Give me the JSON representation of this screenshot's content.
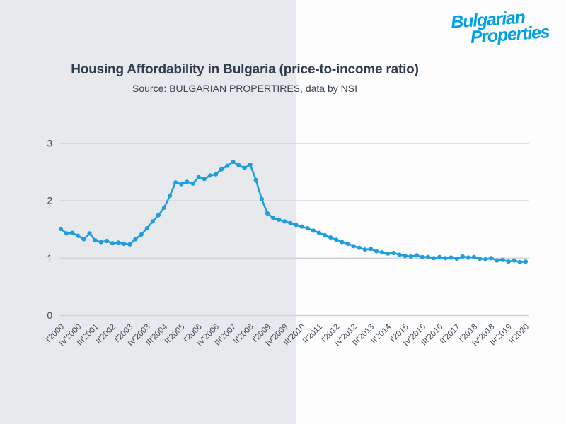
{
  "logo": {
    "line1": "Bulgarian",
    "line2": "Properties"
  },
  "header": {
    "title": "Housing Affordability in Bulgaria (price-to-income ratio)",
    "subtitle": "Source: BULGARIAN PROPERTIRES, data by NSI"
  },
  "colors": {
    "logo_blue": "#00A0E4",
    "line_blue": "#1E9EDF",
    "left_panel_bg": "#E7E9EC",
    "right_panel_bg": "#FDFDFE",
    "gridline": "#D0D4DA",
    "title_text": "#2F3D4D",
    "subtitle_text": "#3A4552",
    "axis_text": "#3E4A57"
  },
  "chart_data": {
    "type": "line",
    "title": "Housing Affordability in Bulgaria (price-to-income ratio)",
    "subtitle": "Source: BULGARIAN PROPERTIRES, data by NSI",
    "series_name": "price-to-income ratio",
    "ylim": [
      0,
      3
    ],
    "yticks": [
      0,
      1,
      2,
      3
    ],
    "grid": "horizontal",
    "legend": "none",
    "marker": "circle",
    "x_tick_every": 3,
    "x_tick_labels": [
      "I'2000",
      "IV'2000",
      "III'2001",
      "II'2002",
      "I'2003",
      "IV'2003",
      "III'2004",
      "II'2005",
      "I'2006",
      "IV'2006",
      "III'2007",
      "II'2008",
      "I'2009",
      "IV'2009",
      "III'2010",
      "II'2011",
      "I'2012",
      "IV'2012",
      "III'2013",
      "II'2014",
      "I'2015",
      "IV'2015",
      "III'2016",
      "II'2017",
      "I'2018",
      "IV'2018",
      "III'2019",
      "II'2020"
    ],
    "x": [
      "I'2000",
      "II'2000",
      "III'2000",
      "IV'2000",
      "I'2001",
      "II'2001",
      "III'2001",
      "IV'2001",
      "I'2002",
      "II'2002",
      "III'2002",
      "IV'2002",
      "I'2003",
      "II'2003",
      "III'2003",
      "IV'2003",
      "I'2004",
      "II'2004",
      "III'2004",
      "IV'2004",
      "I'2005",
      "II'2005",
      "III'2005",
      "IV'2005",
      "I'2006",
      "II'2006",
      "III'2006",
      "IV'2006",
      "I'2007",
      "II'2007",
      "III'2007",
      "IV'2007",
      "I'2008",
      "II'2008",
      "III'2008",
      "IV'2008",
      "I'2009",
      "II'2009",
      "III'2009",
      "IV'2009",
      "I'2010",
      "II'2010",
      "III'2010",
      "IV'2010",
      "I'2011",
      "II'2011",
      "III'2011",
      "IV'2011",
      "I'2012",
      "II'2012",
      "III'2012",
      "IV'2012",
      "I'2013",
      "II'2013",
      "III'2013",
      "IV'2013",
      "I'2014",
      "II'2014",
      "III'2014",
      "IV'2014",
      "I'2015",
      "II'2015",
      "III'2015",
      "IV'2015",
      "I'2016",
      "II'2016",
      "III'2016",
      "IV'2016",
      "I'2017",
      "II'2017",
      "III'2017",
      "IV'2017",
      "I'2018",
      "II'2018",
      "III'2018",
      "IV'2018",
      "I'2019",
      "II'2019",
      "III'2019",
      "IV'2019",
      "I'2020",
      "II'2020"
    ],
    "values": [
      1.51,
      1.43,
      1.44,
      1.39,
      1.33,
      1.43,
      1.31,
      1.28,
      1.3,
      1.26,
      1.27,
      1.25,
      1.24,
      1.33,
      1.41,
      1.52,
      1.64,
      1.75,
      1.88,
      2.09,
      2.32,
      2.29,
      2.33,
      2.3,
      2.41,
      2.38,
      2.44,
      2.46,
      2.55,
      2.61,
      2.68,
      2.62,
      2.57,
      2.63,
      2.36,
      2.03,
      1.78,
      1.7,
      1.67,
      1.64,
      1.61,
      1.58,
      1.55,
      1.52,
      1.48,
      1.44,
      1.4,
      1.36,
      1.32,
      1.28,
      1.25,
      1.21,
      1.18,
      1.15,
      1.16,
      1.12,
      1.1,
      1.08,
      1.09,
      1.06,
      1.04,
      1.03,
      1.05,
      1.02,
      1.02,
      1.0,
      1.02,
      1.0,
      1.01,
      0.99,
      1.03,
      1.01,
      1.02,
      0.99,
      0.98,
      1.0,
      0.96,
      0.97,
      0.94,
      0.96,
      0.93,
      0.94
    ]
  }
}
